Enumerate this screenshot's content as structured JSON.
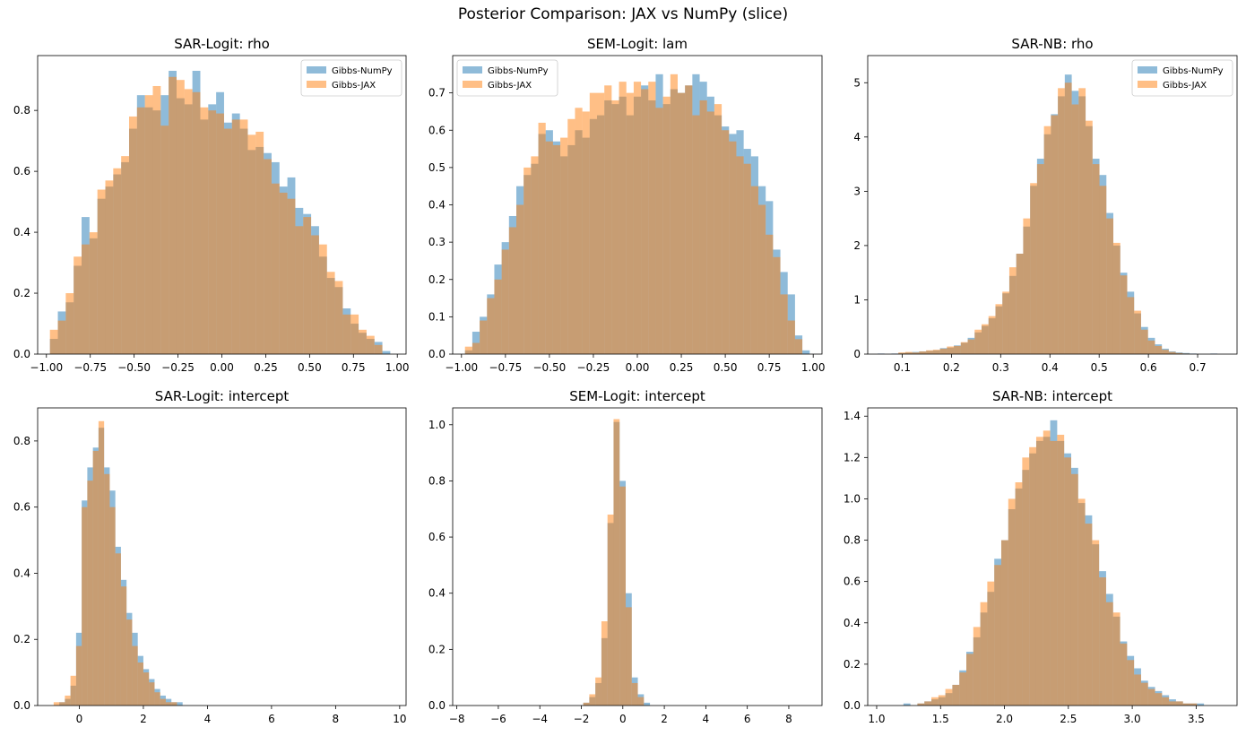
{
  "figure": {
    "title": "Posterior Comparison: JAX vs NumPy (slice)"
  },
  "colors": {
    "numpy": "#1f77b4",
    "jax": "#ff7f0e",
    "bar_alpha": 0.5
  },
  "chart_data": [
    {
      "type": "bar",
      "title": "SAR-Logit: rho",
      "xlim": [
        -1.05,
        1.05
      ],
      "ylim": [
        0,
        0.98
      ],
      "xticks": [
        -1.0,
        -0.75,
        -0.5,
        -0.25,
        0.0,
        0.25,
        0.5,
        0.75,
        1.0
      ],
      "xtick_labels": [
        "−1.00",
        "−0.75",
        "−0.50",
        "−0.25",
        "0.00",
        "0.25",
        "0.50",
        "0.75",
        "1.00"
      ],
      "yticks": [
        0.0,
        0.2,
        0.4,
        0.6,
        0.8
      ],
      "ytick_labels": [
        "0.0",
        "0.2",
        "0.4",
        "0.6",
        "0.8"
      ],
      "grid": false,
      "legend": "top-right",
      "bin_start": -0.98,
      "bin_end": 0.96,
      "series": [
        {
          "name": "Gibbs-NumPy",
          "values": [
            0.05,
            0.14,
            0.17,
            0.29,
            0.45,
            0.38,
            0.51,
            0.55,
            0.59,
            0.63,
            0.74,
            0.85,
            0.81,
            0.8,
            0.85,
            0.93,
            0.84,
            0.82,
            0.93,
            0.77,
            0.82,
            0.86,
            0.76,
            0.79,
            0.74,
            0.67,
            0.68,
            0.66,
            0.63,
            0.55,
            0.58,
            0.48,
            0.46,
            0.42,
            0.32,
            0.25,
            0.22,
            0.15,
            0.1,
            0.07,
            0.05,
            0.04,
            0.01
          ]
        },
        {
          "name": "Gibbs-JAX",
          "values": [
            0.08,
            0.11,
            0.2,
            0.32,
            0.36,
            0.4,
            0.54,
            0.57,
            0.61,
            0.65,
            0.78,
            0.81,
            0.85,
            0.88,
            0.75,
            0.91,
            0.9,
            0.87,
            0.86,
            0.81,
            0.8,
            0.79,
            0.74,
            0.77,
            0.77,
            0.72,
            0.73,
            0.64,
            0.56,
            0.53,
            0.51,
            0.42,
            0.45,
            0.39,
            0.36,
            0.27,
            0.24,
            0.13,
            0.13,
            0.08,
            0.06,
            0.03,
            0.0
          ]
        }
      ]
    },
    {
      "type": "bar",
      "title": "SEM-Logit: lam",
      "xlim": [
        -1.05,
        1.05
      ],
      "ylim": [
        0,
        0.8
      ],
      "xticks": [
        -1.0,
        -0.75,
        -0.5,
        -0.25,
        0.0,
        0.25,
        0.5,
        0.75,
        1.0
      ],
      "xtick_labels": [
        "−1.00",
        "−0.75",
        "−0.50",
        "−0.25",
        "0.00",
        "0.25",
        "0.50",
        "0.75",
        "1.00"
      ],
      "yticks": [
        0.0,
        0.1,
        0.2,
        0.3,
        0.4,
        0.5,
        0.6,
        0.7
      ],
      "ytick_labels": [
        "0.0",
        "0.1",
        "0.2",
        "0.3",
        "0.4",
        "0.5",
        "0.6",
        "0.7"
      ],
      "grid": false,
      "legend": "top-left",
      "bin_start": -0.98,
      "bin_end": 0.98,
      "series": [
        {
          "name": "Gibbs-NumPy",
          "values": [
            0.01,
            0.06,
            0.1,
            0.16,
            0.24,
            0.3,
            0.37,
            0.45,
            0.48,
            0.51,
            0.59,
            0.6,
            0.57,
            0.53,
            0.56,
            0.6,
            0.58,
            0.63,
            0.64,
            0.68,
            0.67,
            0.69,
            0.64,
            0.69,
            0.72,
            0.68,
            0.75,
            0.67,
            0.71,
            0.7,
            0.72,
            0.75,
            0.73,
            0.69,
            0.64,
            0.61,
            0.59,
            0.6,
            0.55,
            0.53,
            0.45,
            0.41,
            0.28,
            0.22,
            0.16,
            0.05,
            0.01
          ]
        },
        {
          "name": "Gibbs-JAX",
          "values": [
            0.02,
            0.03,
            0.09,
            0.15,
            0.2,
            0.28,
            0.34,
            0.4,
            0.5,
            0.53,
            0.62,
            0.57,
            0.56,
            0.58,
            0.63,
            0.66,
            0.65,
            0.7,
            0.7,
            0.72,
            0.68,
            0.73,
            0.7,
            0.73,
            0.71,
            0.73,
            0.66,
            0.69,
            0.75,
            0.7,
            0.72,
            0.64,
            0.68,
            0.65,
            0.67,
            0.6,
            0.57,
            0.53,
            0.51,
            0.45,
            0.4,
            0.32,
            0.26,
            0.16,
            0.09,
            0.04,
            0.0
          ]
        }
      ]
    },
    {
      "type": "bar",
      "title": "SAR-NB: rho",
      "xlim": [
        0.03,
        0.78
      ],
      "ylim": [
        0,
        5.5
      ],
      "xticks": [
        0.1,
        0.2,
        0.3,
        0.4,
        0.5,
        0.6,
        0.7
      ],
      "xtick_labels": [
        "0.1",
        "0.2",
        "0.3",
        "0.4",
        "0.5",
        "0.6",
        "0.7"
      ],
      "yticks": [
        0,
        1,
        2,
        3,
        4,
        5
      ],
      "ytick_labels": [
        "0",
        "1",
        "2",
        "3",
        "4",
        "5"
      ],
      "grid": false,
      "legend": "top-right",
      "bin_start": 0.05,
      "bin_end": 0.74,
      "series": [
        {
          "name": "Gibbs-NumPy",
          "values": [
            0.01,
            0.0,
            0.01,
            0.02,
            0.03,
            0.04,
            0.05,
            0.06,
            0.07,
            0.11,
            0.12,
            0.16,
            0.21,
            0.3,
            0.4,
            0.52,
            0.66,
            0.88,
            1.12,
            1.44,
            1.85,
            2.35,
            3.1,
            3.6,
            4.05,
            4.42,
            4.75,
            5.15,
            4.85,
            4.75,
            4.2,
            3.6,
            3.3,
            2.6,
            2.0,
            1.5,
            1.15,
            0.75,
            0.5,
            0.3,
            0.18,
            0.1,
            0.05,
            0.03,
            0.02,
            0.01,
            0.0,
            0.0,
            0.01
          ]
        },
        {
          "name": "Gibbs-JAX",
          "values": [
            0.0,
            0.0,
            0.0,
            0.03,
            0.04,
            0.03,
            0.05,
            0.07,
            0.08,
            0.1,
            0.14,
            0.15,
            0.22,
            0.27,
            0.45,
            0.55,
            0.7,
            0.92,
            1.15,
            1.6,
            1.85,
            2.5,
            3.15,
            3.5,
            4.2,
            4.4,
            4.9,
            5.0,
            4.6,
            4.9,
            4.3,
            3.5,
            3.1,
            2.5,
            2.05,
            1.45,
            1.05,
            0.8,
            0.45,
            0.25,
            0.15,
            0.08,
            0.04,
            0.02,
            0.01,
            0.0,
            0.0,
            0.0,
            0.0
          ]
        }
      ]
    },
    {
      "type": "bar",
      "title": "SAR-Logit: intercept",
      "xlim": [
        -1.3,
        10.2
      ],
      "ylim": [
        0,
        0.9
      ],
      "xticks": [
        0,
        2,
        4,
        6,
        8,
        10
      ],
      "xtick_labels": [
        "0",
        "2",
        "4",
        "6",
        "8",
        "10"
      ],
      "yticks": [
        0.0,
        0.2,
        0.4,
        0.6,
        0.8
      ],
      "ytick_labels": [
        "0.0",
        "0.2",
        "0.4",
        "0.6",
        "0.8"
      ],
      "grid": false,
      "legend": "none",
      "bin_start": -0.8,
      "bin_end": 3.4,
      "series": [
        {
          "name": "Gibbs-NumPy",
          "values": [
            0.0,
            0.01,
            0.02,
            0.06,
            0.22,
            0.62,
            0.72,
            0.78,
            0.84,
            0.72,
            0.65,
            0.48,
            0.38,
            0.28,
            0.22,
            0.15,
            0.11,
            0.08,
            0.05,
            0.03,
            0.02,
            0.01,
            0.01,
            0.0
          ]
        },
        {
          "name": "Gibbs-JAX",
          "values": [
            0.01,
            0.01,
            0.03,
            0.09,
            0.18,
            0.6,
            0.68,
            0.77,
            0.86,
            0.7,
            0.6,
            0.46,
            0.36,
            0.26,
            0.18,
            0.13,
            0.1,
            0.07,
            0.04,
            0.02,
            0.01,
            0.01,
            0.0,
            0.0
          ]
        }
      ]
    },
    {
      "type": "bar",
      "title": "SEM-Logit: intercept",
      "xlim": [
        -8.2,
        9.6
      ],
      "ylim": [
        0,
        1.06
      ],
      "xticks": [
        -8,
        -6,
        -4,
        -2,
        0,
        2,
        4,
        6,
        8
      ],
      "xtick_labels": [
        "−8",
        "−6",
        "−4",
        "−2",
        "0",
        "2",
        "4",
        "6",
        "8"
      ],
      "yticks": [
        0.0,
        0.2,
        0.4,
        0.6,
        0.8,
        1.0
      ],
      "ytick_labels": [
        "0.0",
        "0.2",
        "0.4",
        "0.6",
        "0.8",
        "1.0"
      ],
      "grid": false,
      "legend": "none",
      "bin_start": -2.2,
      "bin_end": 1.6,
      "series": [
        {
          "name": "Gibbs-NumPy",
          "values": [
            0.0,
            0.01,
            0.03,
            0.08,
            0.24,
            0.65,
            1.01,
            0.8,
            0.4,
            0.1,
            0.04,
            0.01,
            0.0
          ]
        },
        {
          "name": "Gibbs-JAX",
          "values": [
            0.0,
            0.01,
            0.04,
            0.1,
            0.3,
            0.68,
            1.02,
            0.78,
            0.35,
            0.08,
            0.03,
            0.0,
            0.0
          ]
        }
      ]
    },
    {
      "type": "bar",
      "title": "SAR-NB: intercept",
      "xlim": [
        0.93,
        3.82
      ],
      "ylim": [
        0,
        1.44
      ],
      "xticks": [
        1.0,
        1.5,
        2.0,
        2.5,
        3.0,
        3.5
      ],
      "xtick_labels": [
        "1.0",
        "1.5",
        "2.0",
        "2.5",
        "3.0",
        "3.5"
      ],
      "yticks": [
        0.0,
        0.2,
        0.4,
        0.6,
        0.8,
        1.0,
        1.2,
        1.4
      ],
      "ytick_labels": [
        "0.0",
        "0.2",
        "0.4",
        "0.6",
        "0.8",
        "1.0",
        "1.2",
        "1.4"
      ],
      "grid": false,
      "legend": "none",
      "bin_start": 1.1,
      "bin_end": 3.78,
      "series": [
        {
          "name": "Gibbs-NumPy",
          "values": [
            0.0,
            0.0,
            0.01,
            0.0,
            0.01,
            0.02,
            0.03,
            0.04,
            0.06,
            0.1,
            0.17,
            0.26,
            0.33,
            0.45,
            0.55,
            0.71,
            0.8,
            0.95,
            1.05,
            1.14,
            1.22,
            1.28,
            1.3,
            1.38,
            1.28,
            1.22,
            1.15,
            0.98,
            0.92,
            0.78,
            0.65,
            0.54,
            0.43,
            0.31,
            0.24,
            0.18,
            0.12,
            0.09,
            0.07,
            0.05,
            0.03,
            0.02,
            0.01,
            0.01,
            0.01,
            0.0,
            0.0,
            0.0,
            0.0
          ]
        },
        {
          "name": "Gibbs-JAX",
          "values": [
            0.0,
            0.0,
            0.0,
            0.0,
            0.01,
            0.02,
            0.04,
            0.05,
            0.08,
            0.1,
            0.16,
            0.25,
            0.38,
            0.5,
            0.6,
            0.68,
            0.8,
            1.0,
            1.08,
            1.2,
            1.25,
            1.3,
            1.33,
            1.28,
            1.31,
            1.2,
            1.12,
            1.0,
            0.88,
            0.8,
            0.62,
            0.5,
            0.45,
            0.3,
            0.22,
            0.15,
            0.11,
            0.08,
            0.06,
            0.04,
            0.02,
            0.02,
            0.01,
            0.01,
            0.0,
            0.0,
            0.0,
            0.0,
            0.0
          ]
        }
      ]
    }
  ]
}
